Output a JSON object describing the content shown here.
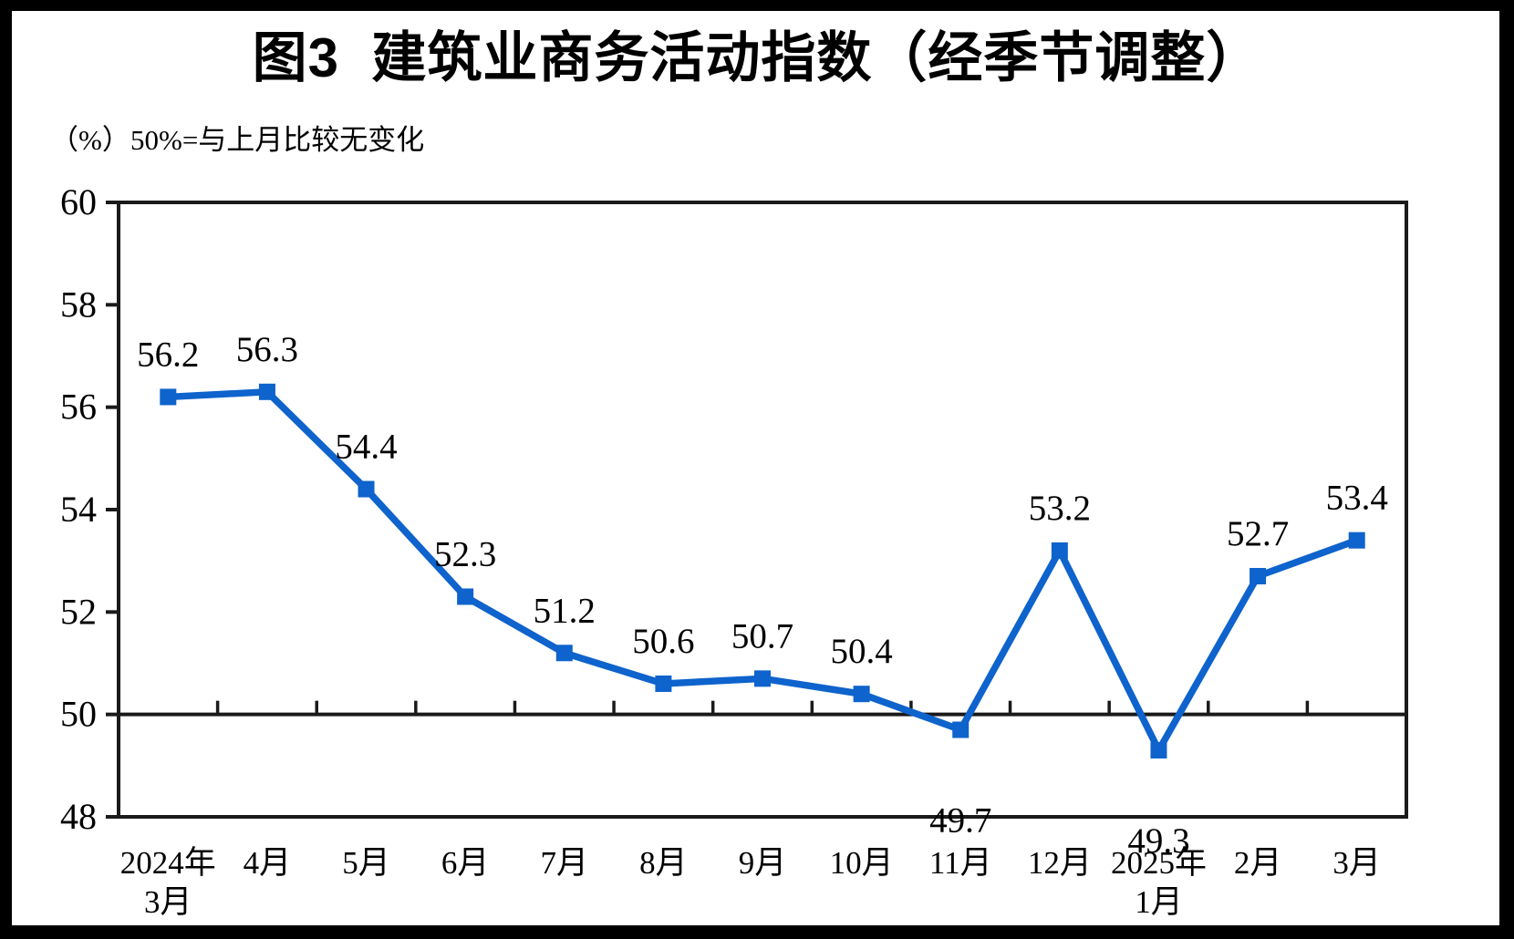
{
  "figure": {
    "background_color": "#000000",
    "panel_color": "#ffffff"
  },
  "chart_data": {
    "type": "line",
    "title": "图3  建筑业商务活动指数（经季节调整）",
    "subtitle_unit": "（%）",
    "subtitle_note": "50%=与上月比较无变化",
    "categories": [
      [
        "2024年",
        "3月"
      ],
      [
        "4月"
      ],
      [
        "5月"
      ],
      [
        "6月"
      ],
      [
        "7月"
      ],
      [
        "8月"
      ],
      [
        "9月"
      ],
      [
        "10月"
      ],
      [
        "11月"
      ],
      [
        "12月"
      ],
      [
        "2025年",
        "1月"
      ],
      [
        "2月"
      ],
      [
        "3月"
      ]
    ],
    "values": [
      56.2,
      56.3,
      54.4,
      52.3,
      51.2,
      50.6,
      50.7,
      50.4,
      49.7,
      53.2,
      49.3,
      52.7,
      53.4
    ],
    "value_labels": [
      "56.2",
      "56.3",
      "54.4",
      "52.3",
      "51.2",
      "50.6",
      "50.7",
      "50.4",
      "49.7",
      "53.2",
      "49.3",
      "52.7",
      "53.4"
    ],
    "value_labels_below_indices": [
      8,
      10
    ],
    "ylim": [
      48,
      60
    ],
    "yticks": [
      48,
      50,
      52,
      54,
      56,
      58,
      60
    ],
    "reference_line": 50,
    "grid": false,
    "legend": "none",
    "line_color": "#0E63CC",
    "marker": "square",
    "axis_color": "#1a1a1a",
    "text_color": "#000000"
  }
}
